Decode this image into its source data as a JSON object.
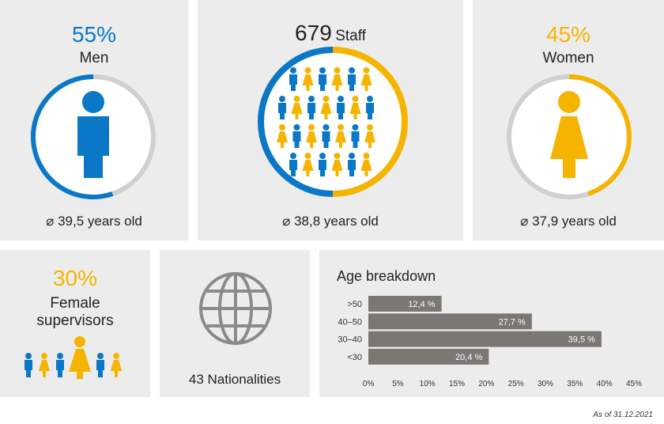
{
  "colors": {
    "men": "#0a78c6",
    "women": "#f5b400",
    "ring_gray": "#d0d0d0",
    "bar": "#7b7772"
  },
  "men": {
    "pct": "55%",
    "label": "Men",
    "age": "⌀ 39,5 years old",
    "icon": "male-person-icon"
  },
  "staff": {
    "count": "679",
    "label": "Staff",
    "age": "⌀ 38,8 years old",
    "icon": "people-grid-icon"
  },
  "women": {
    "pct": "45%",
    "label": "Women",
    "age": "⌀ 37,9 years old",
    "icon": "female-person-icon"
  },
  "supervisors": {
    "pct": "30%",
    "label_line1": "Female",
    "label_line2": "supervisors"
  },
  "nationalities": {
    "text": "43 Nationalities",
    "icon": "globe-icon"
  },
  "chart_data": {
    "type": "bar",
    "title": "Age breakdown",
    "categories": [
      ">50",
      "40–50",
      "30–40",
      "<30"
    ],
    "values": [
      12.4,
      27.7,
      39.5,
      20.4
    ],
    "value_labels": [
      "12,4 %",
      "27,7 %",
      "39,5 %",
      "20,4 %"
    ],
    "xlim": [
      0,
      45
    ],
    "ticks": [
      "0%",
      "5%",
      "10%",
      "15%",
      "20%",
      "25%",
      "30%",
      "35%",
      "40%",
      "45%"
    ],
    "grid": false
  },
  "footnote": "As of 31.12.2021"
}
